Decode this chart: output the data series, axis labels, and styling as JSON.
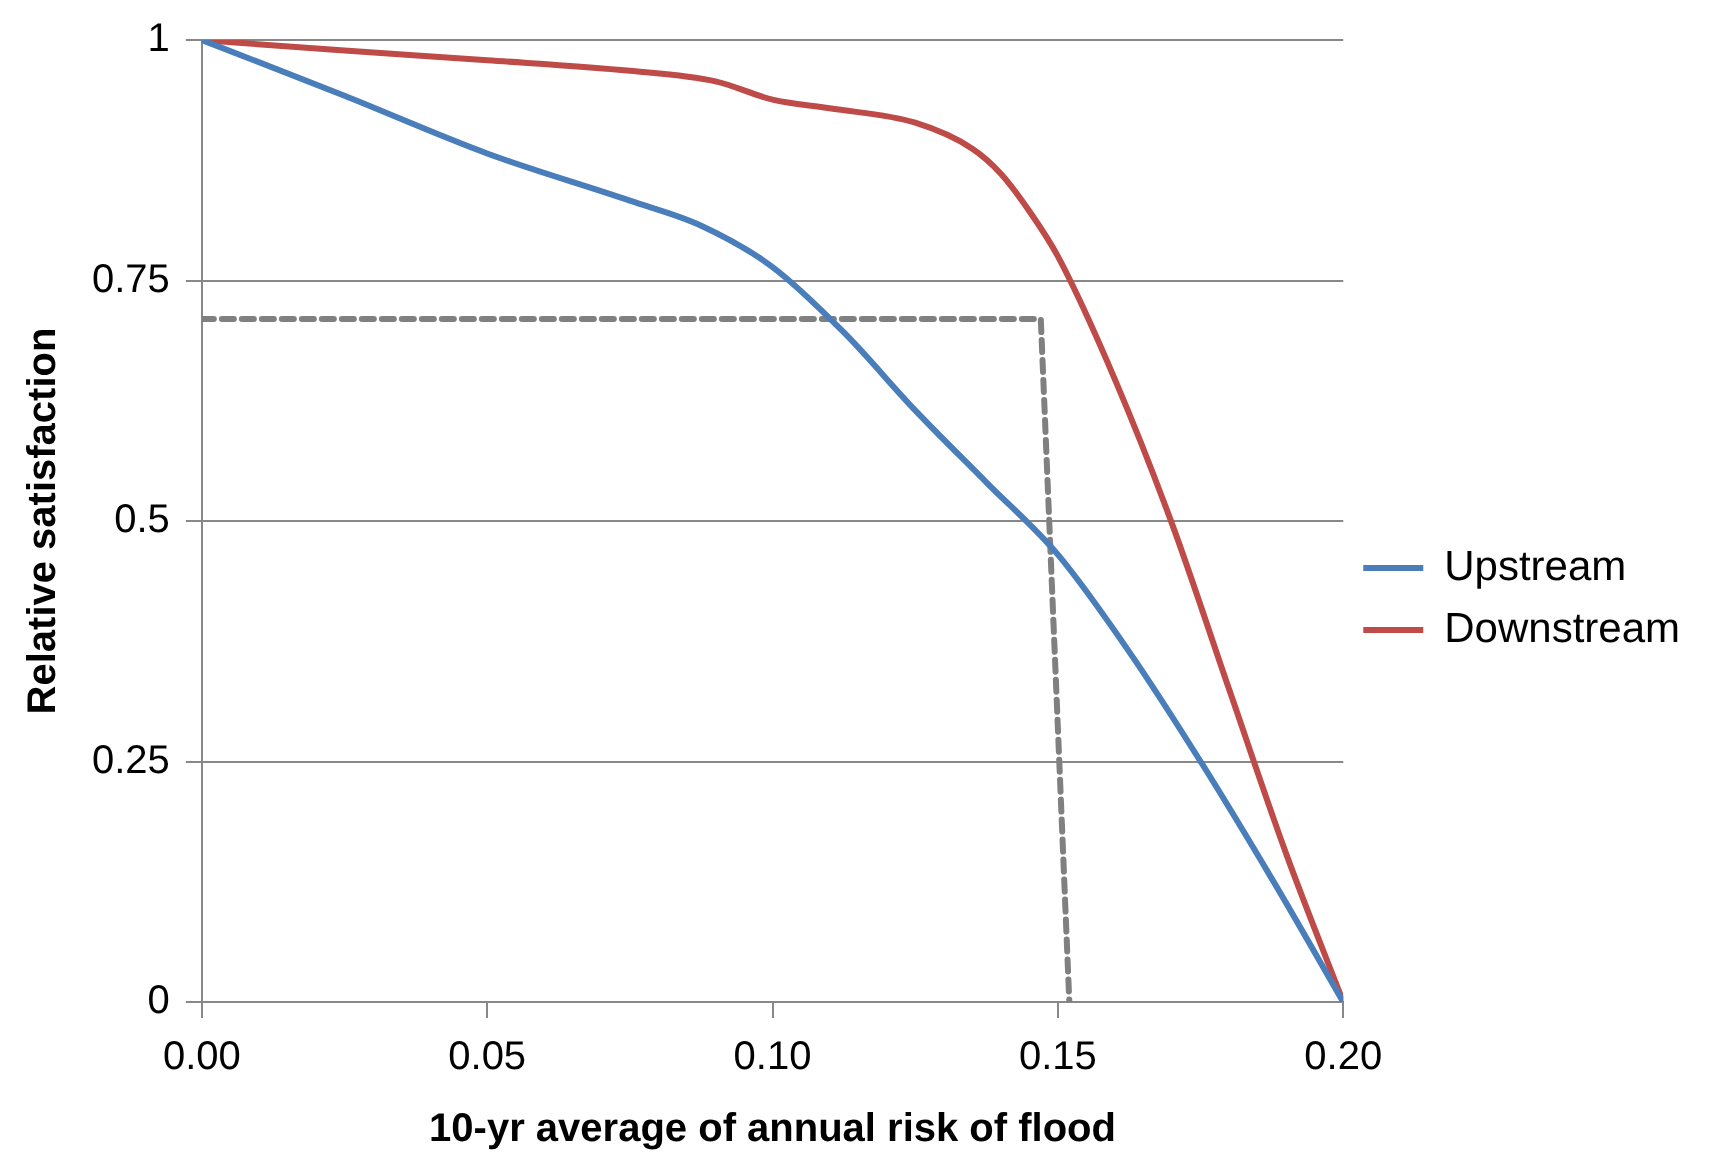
{
  "chart_data": {
    "type": "line",
    "xlabel": "10-yr average of annual risk of flood",
    "ylabel": "Relative satisfaction",
    "xlim": [
      0,
      0.2
    ],
    "xticks": [
      {
        "value": 0,
        "label": "0.00"
      },
      {
        "value": 0.05,
        "label": "0.05"
      },
      {
        "value": 0.1,
        "label": "0.10"
      },
      {
        "value": 0.15,
        "label": "0.15"
      },
      {
        "value": 0.2,
        "label": "0.20"
      }
    ],
    "ylim": [
      0,
      1
    ],
    "yticks": [
      0,
      0.25,
      0.5,
      0.75,
      1
    ],
    "grid": "y",
    "legend": "right",
    "marker": "none",
    "series": [
      {
        "name": "Upstream",
        "color": "#4a7ebb",
        "x": [
          0,
          0.025,
          0.05,
          0.075,
          0.0875,
          0.1,
          0.1125,
          0.125,
          0.1375,
          0.15,
          0.1625,
          0.175,
          0.1875,
          0.2
        ],
        "values": [
          1,
          0.942,
          0.882,
          0.833,
          0.807,
          0.764,
          0.696,
          0.615,
          0.54,
          0.465,
          0.364,
          0.25,
          0.128,
          0
        ]
      },
      {
        "name": "Downstream",
        "color": "#be4b48",
        "x": [
          0,
          0.025,
          0.05,
          0.075,
          0.09,
          0.1,
          0.11,
          0.125,
          0.135,
          0.14,
          0.145,
          0.15,
          0.16,
          0.17,
          0.18,
          0.19,
          0.2
        ],
        "values": [
          1,
          0.989,
          0.979,
          0.968,
          0.957,
          0.938,
          0.929,
          0.914,
          0.887,
          0.861,
          0.822,
          0.775,
          0.647,
          0.497,
          0.325,
          0.154,
          0
        ]
      },
      {
        "color": "#808080",
        "line_style": "dashed",
        "x": [
          0,
          0.147,
          0.152
        ],
        "values": [
          0.71,
          0.71,
          0
        ]
      }
    ]
  }
}
